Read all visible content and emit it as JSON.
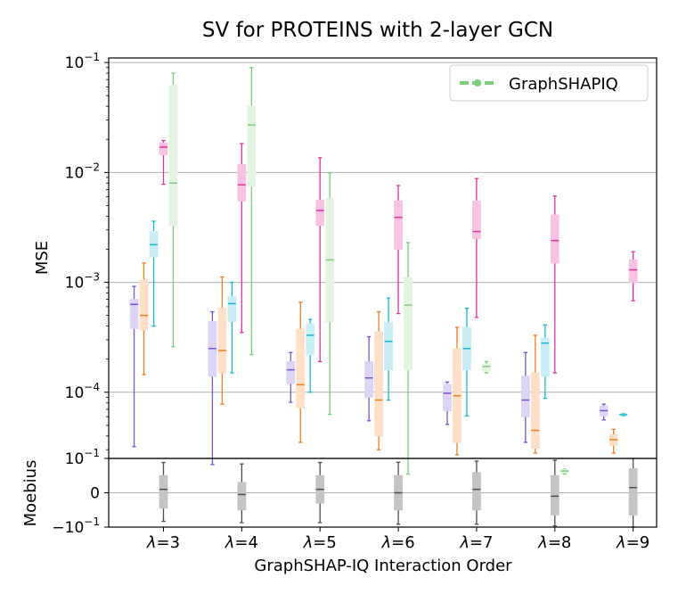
{
  "chart_data": {
    "type": "boxplot",
    "title": "SV for PROTEINS with 2-layer GCN",
    "xlabel": "GraphSHAP-IQ Interaction Order",
    "categories": [
      "λ=3",
      "λ=4",
      "λ=5",
      "λ=6",
      "λ=7",
      "λ=8",
      "λ=9"
    ],
    "category_labels": [
      {
        "sym": "λ",
        "rest": "=3"
      },
      {
        "sym": "λ",
        "rest": "=4"
      },
      {
        "sym": "λ",
        "rest": "=5"
      },
      {
        "sym": "λ",
        "rest": "=6"
      },
      {
        "sym": "λ",
        "rest": "=7"
      },
      {
        "sym": "λ",
        "rest": "=8"
      },
      {
        "sym": "λ",
        "rest": "=9"
      }
    ],
    "legend": {
      "label": "GraphSHAPIQ",
      "position": "top-right",
      "color": "#7ccd7c"
    },
    "top_panel": {
      "ylabel": "MSE",
      "yscale": "log",
      "ylim": [
        2.5e-05,
        0.11
      ],
      "grid": true,
      "y_ticks": [
        {
          "value": 0.1,
          "base": "10",
          "exp": "−1"
        },
        {
          "value": 0.01,
          "base": "10",
          "exp": "−2"
        },
        {
          "value": 0.001,
          "base": "10",
          "exp": "−3"
        },
        {
          "value": 0.0001,
          "base": "10",
          "exp": "−4"
        }
      ],
      "series": [
        {
          "name": "series-purple",
          "color": "#7b52d9",
          "fill": "#ded4f5",
          "offset": -0.375,
          "width": 0.1,
          "boxes": [
            {
              "q1": 0.00038,
              "median": 0.00063,
              "q3": 0.0007,
              "lo": 3.2e-05,
              "hi": 0.00092
            },
            {
              "q1": 0.00014,
              "median": 0.00025,
              "q3": 0.00044,
              "lo": 2.2e-05,
              "hi": 0.00054
            },
            {
              "q1": 0.00012,
              "median": 0.00016,
              "q3": 0.00019,
              "lo": 8.1e-05,
              "hi": 0.00023
            },
            {
              "q1": 9e-05,
              "median": 0.000135,
              "q3": 0.00019,
              "lo": 5.5e-05,
              "hi": 0.00032
            },
            {
              "q1": 6.8e-05,
              "median": 9.8e-05,
              "q3": 0.000118,
              "lo": 5.1e-05,
              "hi": 0.000124
            },
            {
              "q1": 6e-05,
              "median": 8.5e-05,
              "q3": 0.00014,
              "lo": 3.5e-05,
              "hi": 0.00023
            },
            {
              "q1": 6.1e-05,
              "median": 6.8e-05,
              "q3": 7.5e-05,
              "lo": 5.6e-05,
              "hi": 7.8e-05
            }
          ]
        },
        {
          "name": "series-orange",
          "color": "#f07d1f",
          "fill": "#fde0c7",
          "offset": -0.25,
          "width": 0.1,
          "boxes": [
            {
              "q1": 0.00037,
              "median": 0.0005,
              "q3": 0.00105,
              "lo": 0.000145,
              "hi": 0.0015
            },
            {
              "q1": 0.00015,
              "median": 0.00024,
              "q3": 0.00058,
              "lo": 7.8e-05,
              "hi": 0.00112
            },
            {
              "q1": 7.2e-05,
              "median": 0.000117,
              "q3": 0.000375,
              "lo": 3.5e-05,
              "hi": 0.00066
            },
            {
              "q1": 4e-05,
              "median": 8.5e-05,
              "q3": 0.000355,
              "lo": 3e-05,
              "hi": 0.00054
            },
            {
              "q1": 3.5e-05,
              "median": 9.3e-05,
              "q3": 0.00025,
              "lo": 2.7e-05,
              "hi": 0.00039
            },
            {
              "q1": 3.1e-05,
              "median": 4.5e-05,
              "q3": 0.00015,
              "lo": 2.8e-05,
              "hi": 0.00033
            },
            {
              "q1": 3.3e-05,
              "median": 3.7e-05,
              "q3": 4.1e-05,
              "lo": 2.8e-05,
              "hi": 4.6e-05
            }
          ]
        },
        {
          "name": "series-cyan",
          "color": "#18b8d2",
          "fill": "#c9eef5",
          "offset": -0.125,
          "width": 0.1,
          "boxes": [
            {
              "q1": 0.0017,
              "median": 0.0022,
              "q3": 0.0029,
              "lo": 0.0004,
              "hi": 0.0036
            },
            {
              "q1": 0.00044,
              "median": 0.00064,
              "q3": 0.00074,
              "lo": 0.00015,
              "hi": 0.001
            },
            {
              "q1": 0.00022,
              "median": 0.00033,
              "q3": 0.00042,
              "lo": 0.0001,
              "hi": 0.00046
            },
            {
              "q1": 0.00016,
              "median": 0.00029,
              "q3": 0.00043,
              "lo": 8.5e-05,
              "hi": 0.00072
            },
            {
              "q1": 0.00016,
              "median": 0.00025,
              "q3": 0.00039,
              "lo": 6.1e-05,
              "hi": 0.00058
            },
            {
              "q1": 0.00014,
              "median": 0.00028,
              "q3": 0.00031,
              "lo": 8.8e-05,
              "hi": 0.00041
            },
            {
              "q1": 6.15e-05,
              "median": 6.25e-05,
              "q3": 6.35e-05,
              "lo": 6.1e-05,
              "hi": 6.4e-05
            }
          ]
        },
        {
          "name": "series-magenta",
          "color": "#e0329a",
          "fill": "#f8c3e2",
          "offset": 0.0,
          "width": 0.1,
          "boxes": [
            {
              "q1": 0.0145,
              "median": 0.017,
              "q3": 0.0185,
              "lo": 0.0078,
              "hi": 0.0195
            },
            {
              "q1": 0.0055,
              "median": 0.0077,
              "q3": 0.0118,
              "lo": 0.00035,
              "hi": 0.0183
            },
            {
              "q1": 0.0033,
              "median": 0.0045,
              "q3": 0.0056,
              "lo": 0.00019,
              "hi": 0.0136
            },
            {
              "q1": 0.002,
              "median": 0.0039,
              "q3": 0.0055,
              "lo": 0.00052,
              "hi": 0.0076
            },
            {
              "q1": 0.0025,
              "median": 0.0029,
              "q3": 0.0055,
              "lo": 0.00048,
              "hi": 0.0088
            },
            {
              "q1": 0.0015,
              "median": 0.0024,
              "q3": 0.0041,
              "lo": 0.00015,
              "hi": 0.0061
            },
            {
              "q1": 0.001,
              "median": 0.0013,
              "q3": 0.0016,
              "lo": 0.00068,
              "hi": 0.0019
            }
          ]
        },
        {
          "name": "series-green",
          "color": "#7ccd7c",
          "fill": "#e3f4e3",
          "offset": 0.125,
          "width": 0.1,
          "boxes": [
            {
              "q1": 0.0033,
              "median": 0.008,
              "q3": 0.062,
              "lo": 0.00026,
              "hi": 0.08
            },
            {
              "q1": 0.0075,
              "median": 0.027,
              "q3": 0.04,
              "lo": 0.00022,
              "hi": 0.09
            },
            {
              "q1": 0.00044,
              "median": 0.0016,
              "q3": 0.0058,
              "lo": 6.3e-05,
              "hi": 0.0099
            },
            {
              "q1": 0.00016,
              "median": 0.00062,
              "q3": 0.0011,
              "lo": 1.8e-05,
              "hi": 0.0023
            },
            {
              "q1": 0.000155,
              "median": 0.000172,
              "q3": 0.00018,
              "lo": 0.00015,
              "hi": 0.00019
            },
            {
              "q1": 1.85e-05,
              "median": 1.92e-05,
              "q3": 1.98e-05,
              "lo": 1.8e-05,
              "hi": 2e-05
            },
            null
          ]
        }
      ]
    },
    "bottom_panel": {
      "ylabel": "Moebius",
      "yscale": "symlog",
      "ylim": [
        -0.1,
        0.1
      ],
      "grid": true,
      "y_ticks": [
        {
          "value": 0.1,
          "base": "10",
          "exp": "−1",
          "prefix": ""
        },
        {
          "value": 0,
          "base": "0",
          "exp": "",
          "prefix": ""
        },
        {
          "value": -0.1,
          "base": "10",
          "exp": "−1",
          "prefix": "−"
        }
      ],
      "series": [
        {
          "name": "series-gray",
          "color": "#4d4d4d",
          "fill": "#c4c4c4",
          "offset": 0.0,
          "width": 0.1,
          "boxes": [
            {
              "q1": -0.009,
              "median": 0.002,
              "q3": 0.01,
              "lo": -0.046,
              "hi": 0.058
            },
            {
              "q1": -0.01,
              "median": -0.001,
              "q3": 0.006,
              "lo": -0.055,
              "hi": 0.048
            },
            {
              "q1": -0.006,
              "median": 0.002,
              "q3": 0.01,
              "lo": -0.055,
              "hi": 0.058
            },
            {
              "q1": -0.01,
              "median": 0.0,
              "q3": 0.01,
              "lo": -0.068,
              "hi": 0.06
            },
            {
              "q1": -0.01,
              "median": 0.002,
              "q3": 0.015,
              "lo": -0.068,
              "hi": 0.07
            },
            {
              "q1": -0.02,
              "median": -0.002,
              "q3": 0.01,
              "lo": -0.085,
              "hi": 0.078
            },
            {
              "q1": -0.02,
              "median": 0.003,
              "q3": 0.025,
              "lo": -0.1,
              "hi": 0.1
            }
          ]
        }
      ]
    }
  }
}
